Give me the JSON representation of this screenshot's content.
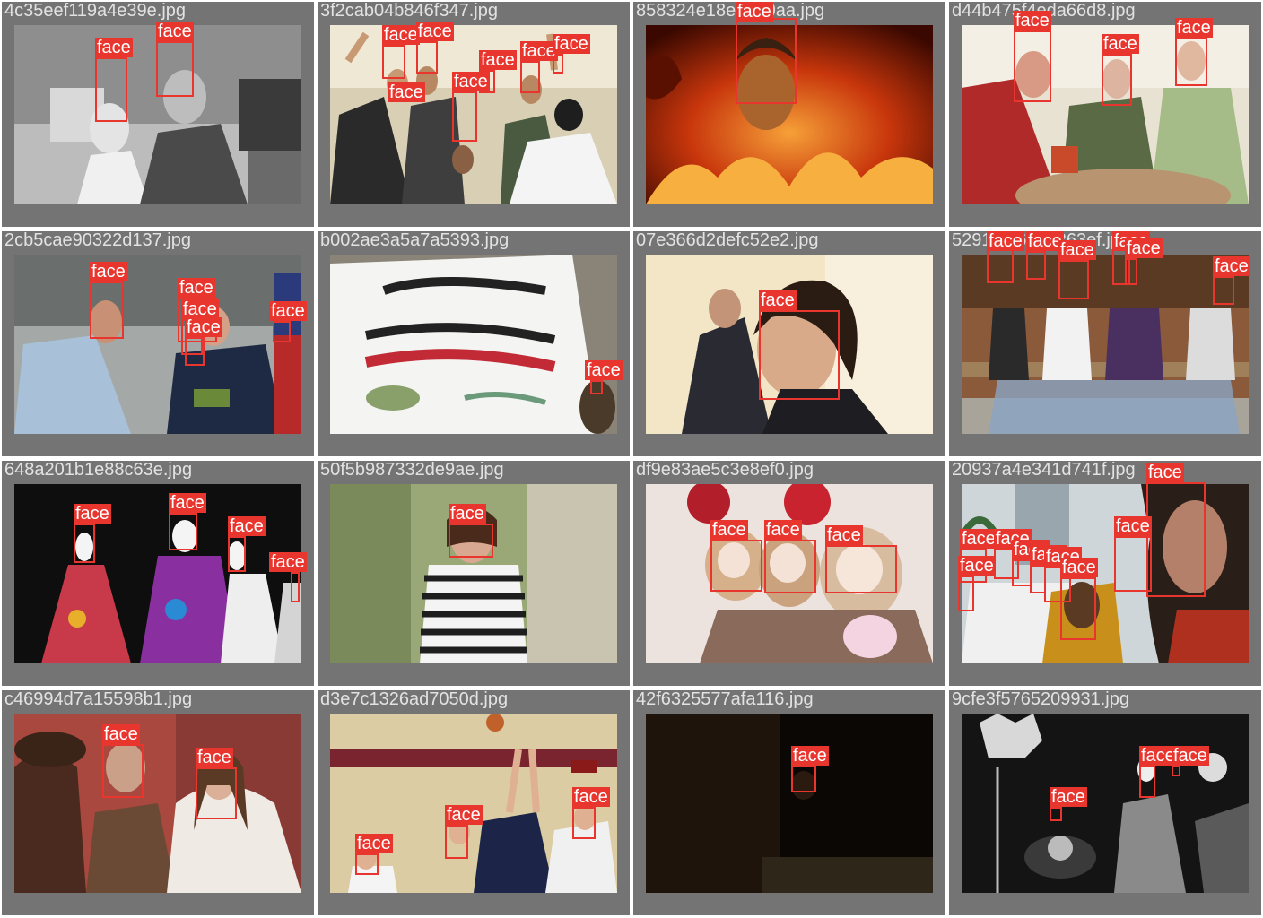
{
  "grid": {
    "label_text": "face",
    "colors": {
      "box": "#e8362f",
      "tile_bg": "#747474",
      "filename": "#e2e2e2",
      "label_text": "#ffffff"
    },
    "tiles": [
      {
        "filename": "4c35eef119a4e39e.jpg",
        "scene": "bw-living-room",
        "colors": [
          "#cfcfcf",
          "#3a3a3a",
          "#8a8a8a"
        ],
        "faces": 2
      },
      {
        "filename": "3f2cab04b846f347.jpg",
        "scene": "crowd-cheering",
        "colors": [
          "#e8e0c8",
          "#2b2b2b",
          "#c9b79a"
        ],
        "faces": 7
      },
      {
        "filename": "858324e18e3720aa.jpg",
        "scene": "fire-demon",
        "colors": [
          "#d2410f",
          "#5a0d00",
          "#f08a2a"
        ],
        "faces": 1
      },
      {
        "filename": "d44b475f4eda66d8.jpg",
        "scene": "seniors-breakfast",
        "colors": [
          "#d8cbb0",
          "#a32b2b",
          "#7a8f5a"
        ],
        "faces": 3
      },
      {
        "filename": "2cb5cae90322d137.jpg",
        "scene": "military-ceremony",
        "colors": [
          "#a8b4c4",
          "#1e2a44",
          "#6f7b66"
        ],
        "faces": 5
      },
      {
        "filename": "b002ae3a5a7a5393.jpg",
        "scene": "protest-sign",
        "colors": [
          "#f4f4f2",
          "#222222",
          "#c22b36"
        ],
        "faces": 1
      },
      {
        "filename": "07e366d2defc52e2.jpg",
        "scene": "young-man-portrait",
        "colors": [
          "#f0e4c0",
          "#2a1c12",
          "#c48f6a"
        ],
        "faces": 1
      },
      {
        "filename": "52910fa6a18263ef.jpg",
        "scene": "people-on-bench",
        "colors": [
          "#8a5a3a",
          "#4a3060",
          "#b7c4d4"
        ],
        "faces": 6
      },
      {
        "filename": "648a201b1e88c63e.jpg",
        "scene": "mannequins-dresses",
        "colors": [
          "#111111",
          "#e9e9e9",
          "#8a2fa0"
        ],
        "faces": 4
      },
      {
        "filename": "50f5b987332de9ae.jpg",
        "scene": "striped-shirt-girl",
        "colors": [
          "#a8b58a",
          "#f0f0f0",
          "#2a2a2a"
        ],
        "faces": 1
      },
      {
        "filename": "df9e83ae5c3e8ef0.jpg",
        "scene": "dolls",
        "colors": [
          "#e8dcd8",
          "#b21e2a",
          "#d6b59a"
        ],
        "faces": 3
      },
      {
        "filename": "20937a4e341d741f.jpg",
        "scene": "outdoor-crowd",
        "colors": [
          "#cfd6da",
          "#3a2a22",
          "#a4442a"
        ],
        "faces": 9
      },
      {
        "filename": "c46994d7a15598b1.jpg",
        "scene": "period-drama",
        "colors": [
          "#a0443a",
          "#5a4030",
          "#eae6de"
        ],
        "faces": 2
      },
      {
        "filename": "d3e7c1326ad7050d.jpg",
        "scene": "basketball",
        "colors": [
          "#d8c8a0",
          "#1c2548",
          "#7a2430"
        ],
        "faces": 4
      },
      {
        "filename": "42f6325577afa116.jpg",
        "scene": "dark-room",
        "colors": [
          "#0c0805",
          "#2a1c12",
          "#3a3020"
        ],
        "faces": 1
      },
      {
        "filename": "9cfe3f5765209931.jpg",
        "scene": "bw-concert",
        "colors": [
          "#111111",
          "#eeeeee",
          "#777777"
        ],
        "faces": 3
      }
    ]
  }
}
